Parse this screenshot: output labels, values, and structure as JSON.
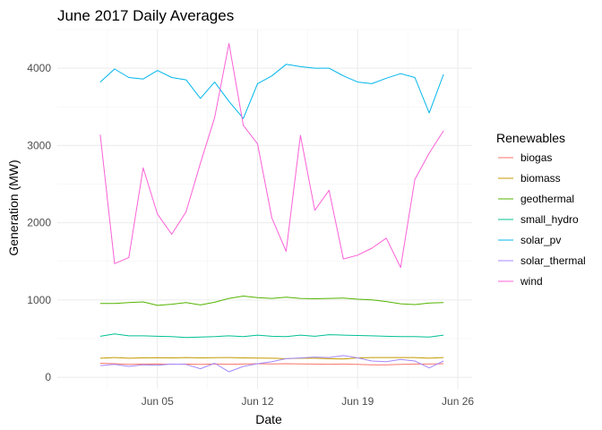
{
  "chart_data": {
    "type": "line",
    "title": "June 2017 Daily Averages",
    "xlabel": "Date",
    "ylabel": "Generation (MW)",
    "x": [
      "2017-06-01",
      "2017-06-02",
      "2017-06-03",
      "2017-06-04",
      "2017-06-05",
      "2017-06-06",
      "2017-06-07",
      "2017-06-08",
      "2017-06-09",
      "2017-06-10",
      "2017-06-11",
      "2017-06-12",
      "2017-06-13",
      "2017-06-14",
      "2017-06-15",
      "2017-06-16",
      "2017-06-17",
      "2017-06-18",
      "2017-06-19",
      "2017-06-20",
      "2017-06-21",
      "2017-06-22",
      "2017-06-23",
      "2017-06-24",
      "2017-06-25"
    ],
    "xlim": [
      "2017-05-29",
      "2017-06-27"
    ],
    "x_ticks": [
      {
        "date": "2017-06-05",
        "label": "Jun 05"
      },
      {
        "date": "2017-06-12",
        "label": "Jun 12"
      },
      {
        "date": "2017-06-19",
        "label": "Jun 19"
      },
      {
        "date": "2017-06-26",
        "label": "Jun 26"
      }
    ],
    "y_ticks": [
      0,
      1000,
      2000,
      3000,
      4000
    ],
    "ylim": [
      -150,
      4500
    ],
    "grid": true,
    "legend": {
      "title": "Renewables",
      "position": "right"
    },
    "series": [
      {
        "name": "biogas",
        "color": "#F8766D",
        "values": [
          180,
          175,
          165,
          170,
          172,
          168,
          170,
          165,
          172,
          168,
          170,
          175,
          172,
          175,
          172,
          170,
          168,
          170,
          165,
          160,
          160,
          165,
          170,
          170,
          175
        ]
      },
      {
        "name": "biomass",
        "color": "#C49A00",
        "values": [
          245,
          255,
          245,
          250,
          252,
          250,
          255,
          250,
          252,
          255,
          250,
          248,
          245,
          240,
          245,
          245,
          240,
          235,
          250,
          255,
          255,
          255,
          255,
          245,
          255
        ]
      },
      {
        "name": "geothermal",
        "color": "#53B400",
        "values": [
          955,
          955,
          965,
          975,
          930,
          945,
          965,
          935,
          970,
          1020,
          1050,
          1030,
          1020,
          1035,
          1020,
          1015,
          1020,
          1025,
          1010,
          1000,
          980,
          950,
          940,
          960,
          965
        ]
      },
      {
        "name": "small_hydro",
        "color": "#00C094",
        "values": [
          530,
          560,
          535,
          535,
          530,
          525,
          515,
          520,
          525,
          535,
          525,
          545,
          530,
          525,
          545,
          530,
          550,
          545,
          540,
          535,
          530,
          525,
          525,
          520,
          545
        ]
      },
      {
        "name": "solar_pv",
        "color": "#00B6EB",
        "values": [
          3820,
          3990,
          3880,
          3860,
          3970,
          3880,
          3850,
          3610,
          3820,
          3570,
          3350,
          3800,
          3900,
          4050,
          4020,
          4000,
          4000,
          3900,
          3820,
          3800,
          3870,
          3930,
          3880,
          3420,
          3920
        ]
      },
      {
        "name": "solar_thermal",
        "color": "#A58AFF",
        "values": [
          150,
          165,
          140,
          160,
          155,
          170,
          165,
          110,
          180,
          70,
          140,
          175,
          200,
          240,
          250,
          260,
          255,
          280,
          250,
          210,
          200,
          230,
          210,
          120,
          210
        ]
      },
      {
        "name": "wind",
        "color": "#FB61D7",
        "values": [
          3140,
          1470,
          1550,
          2710,
          2110,
          1850,
          2140,
          2770,
          3360,
          4320,
          3260,
          3020,
          2060,
          1630,
          3130,
          2160,
          2420,
          1530,
          1580,
          1670,
          1800,
          1420,
          2560,
          2900,
          3190
        ]
      }
    ]
  }
}
